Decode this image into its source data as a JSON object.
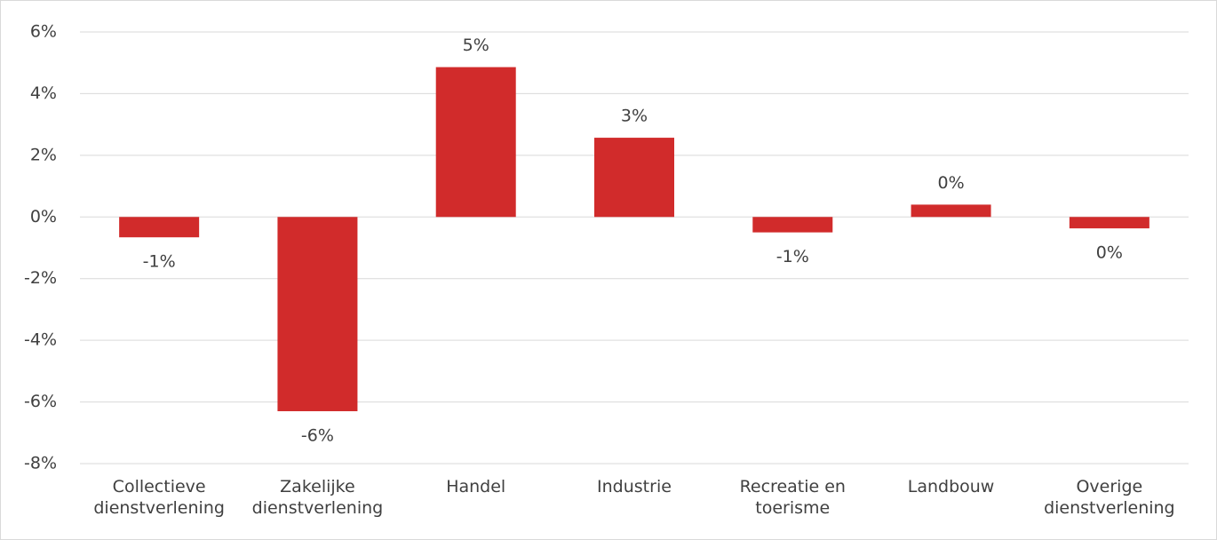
{
  "chart_data": {
    "type": "bar",
    "categories": [
      "Collectieve dienstverlening",
      "Zakelijke dienstverlening",
      "Handel",
      "Industrie",
      "Recreatie en toerisme",
      "Landbouw",
      "Overige dienstverlening"
    ],
    "values": [
      -0.66,
      -6.3,
      4.86,
      2.57,
      -0.5,
      0.4,
      -0.37
    ],
    "value_labels": [
      "-1%",
      "-6%",
      "5%",
      "3%",
      "-1%",
      "0%",
      "0%"
    ],
    "color": "#d12b2b",
    "ylim": [
      -8,
      6
    ],
    "yticks": [
      {
        "value": -8,
        "label": "-8%"
      },
      {
        "value": -6,
        "label": "-6%"
      },
      {
        "value": -4,
        "label": "-4%"
      },
      {
        "value": -2,
        "label": "-2%"
      },
      {
        "value": 0,
        "label": "0%"
      },
      {
        "value": 2,
        "label": "2%"
      },
      {
        "value": 4,
        "label": "4%"
      },
      {
        "value": 6,
        "label": "6%"
      }
    ],
    "grid": true
  }
}
